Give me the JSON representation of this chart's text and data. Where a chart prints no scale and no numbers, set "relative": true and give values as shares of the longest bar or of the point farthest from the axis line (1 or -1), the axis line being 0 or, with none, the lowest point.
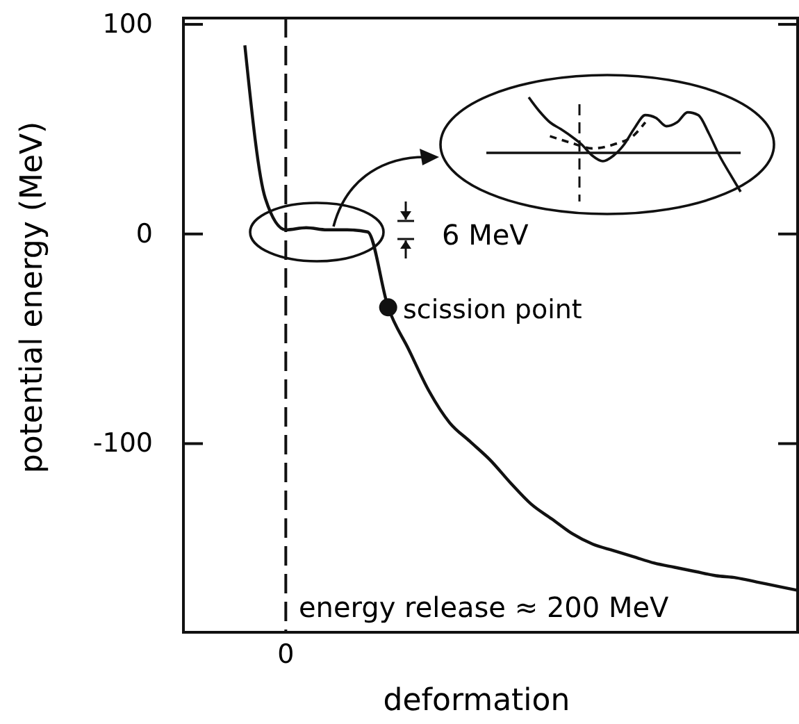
{
  "chart_data": [
    {
      "type": "line",
      "xlabel": "deformation",
      "ylabel": "potential energy (MeV)",
      "categories": [
        null,
        null,
        null,
        null,
        null,
        "0",
        null,
        null,
        null,
        null,
        null,
        null,
        null,
        null,
        null,
        null,
        null,
        null,
        null,
        null,
        null,
        null,
        null,
        null,
        null,
        null,
        null,
        null,
        null,
        null,
        null
      ],
      "series": [
        {
          "color": "#111111",
          "values": [
            null,
            null,
            null,
            90,
            17,
            2,
            3,
            2,
            2,
            1,
            -35,
            -55,
            -75,
            -90,
            -99,
            -108,
            -119,
            -129,
            -136,
            -143,
            -148,
            -151,
            -154,
            -157,
            -159,
            -161,
            -163,
            -164,
            -166,
            -168,
            -170
          ]
        },
        {
          "type": "scatter",
          "marker": "circle",
          "color": "#111111",
          "values": [
            null,
            null,
            null,
            null,
            null,
            null,
            null,
            null,
            null,
            null,
            -35,
            null,
            null,
            null,
            null,
            null,
            null,
            null,
            null,
            null,
            null,
            null,
            null,
            null,
            null,
            null,
            null,
            null,
            null,
            null,
            null
          ]
        }
      ],
      "ylim": [
        -190,
        103
      ],
      "yticks": [
        -100,
        0,
        100
      ],
      "ref_lines": [
        {
          "axis": "x",
          "value": "0",
          "line_style": "dashed",
          "color": "#111111"
        }
      ],
      "annotations": [
        "scission point",
        "6 MeV",
        "energy release ≈ 200 MeV"
      ],
      "grid": false,
      "marker": "none"
    },
    {
      "type": "line",
      "relative": true,
      "categories": [
        null,
        null,
        null,
        null,
        null,
        null,
        null,
        null,
        null,
        null,
        null,
        null,
        null,
        null,
        null,
        null,
        null,
        null,
        null,
        null,
        null,
        null,
        null,
        null,
        null
      ],
      "series": [
        {
          "color": "#111111",
          "values": [
            null,
            null,
            null,
            null,
            1,
            0.75,
            0.55,
            0.43,
            0.3,
            0.15,
            -0.05,
            -0.15,
            -0.05,
            0.15,
            0.45,
            0.68,
            0.63,
            0.48,
            0.55,
            0.73,
            0.68,
            0.35,
            -0.05,
            -0.38,
            -0.7
          ]
        },
        {
          "color": "#111111",
          "line_style": "dashed",
          "values": [
            null,
            null,
            null,
            null,
            null,
            null,
            0.3,
            null,
            0.18,
            null,
            0.08,
            null,
            0.15,
            null,
            0.33,
            0.55,
            null,
            null,
            null,
            null,
            null,
            null,
            null,
            null,
            null
          ]
        }
      ],
      "marker": "none"
    }
  ]
}
